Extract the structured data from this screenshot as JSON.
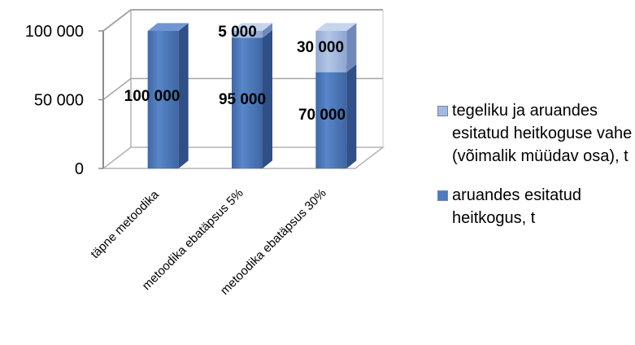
{
  "chart_data": {
    "type": "bar",
    "stacked": true,
    "three_d": true,
    "categories": [
      "täpne metoodika",
      "metoodika ebatäpsus 5%",
      "metoodika ebatäpsus 30%"
    ],
    "series": [
      {
        "name": "aruandes esitatud heitkogus, t",
        "values": [
          100000,
          95000,
          70000
        ],
        "labels": [
          "100 000",
          "95 000",
          "70 000"
        ],
        "color": "#4f7bbf"
      },
      {
        "name": "tegeliku ja aruandes esitatud heitkoguse vahe (võimalik müüdav osa), t",
        "values": [
          0,
          5000,
          30000
        ],
        "labels": [
          "",
          "5 000",
          "30 000"
        ],
        "color": "#a5b9dc"
      }
    ],
    "ylim": [
      0,
      100000
    ],
    "yticks": [
      0,
      50000,
      100000
    ],
    "ytick_labels": [
      "0",
      "50 000",
      "100 000"
    ],
    "legend_position": "right",
    "grid": true
  }
}
